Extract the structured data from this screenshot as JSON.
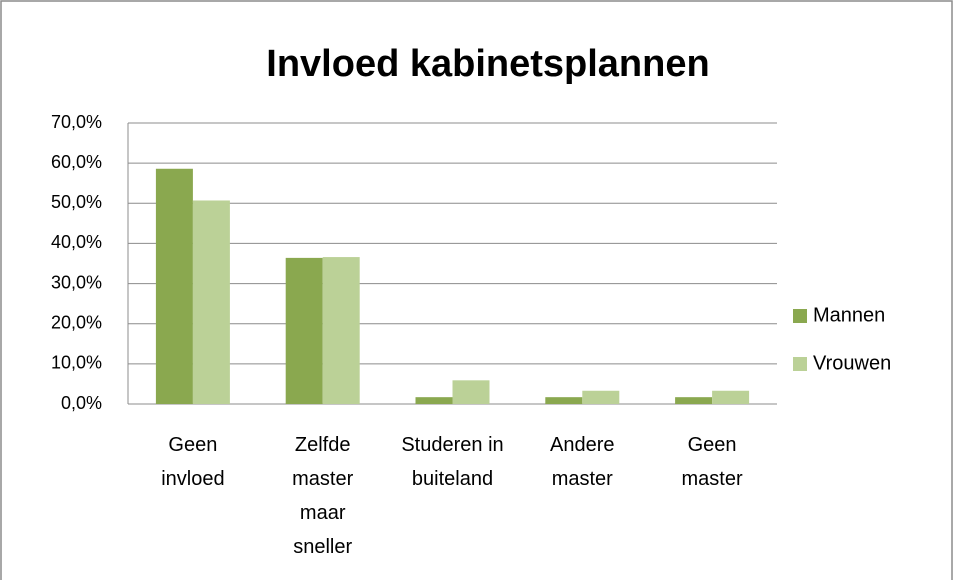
{
  "chart_data": {
    "type": "bar",
    "title": "Invloed kabinetsplannen",
    "categories": [
      "Geen invloed",
      "Zelfde master maar sneller",
      "Studeren in buiteland",
      "Andere master",
      "Geen master"
    ],
    "series": [
      {
        "name": "Mannen",
        "color": "#8aa84f",
        "values": [
          58.6,
          36.4,
          1.7,
          1.7,
          1.7
        ]
      },
      {
        "name": "Vrouwen",
        "color": "#bbd197",
        "values": [
          50.7,
          36.6,
          5.9,
          3.3,
          3.3
        ]
      }
    ],
    "ylim": [
      0,
      70
    ],
    "yticks": [
      {
        "value": 0,
        "label": "0,0%"
      },
      {
        "value": 10,
        "label": "10,0%"
      },
      {
        "value": 20,
        "label": "20,0%"
      },
      {
        "value": 30,
        "label": "30,0%"
      },
      {
        "value": 40,
        "label": "40,0%"
      },
      {
        "value": 50,
        "label": "50,0%"
      },
      {
        "value": 60,
        "label": "60,0%"
      },
      {
        "value": 70,
        "label": "70,0%"
      }
    ],
    "grid": true,
    "legend": "right"
  }
}
